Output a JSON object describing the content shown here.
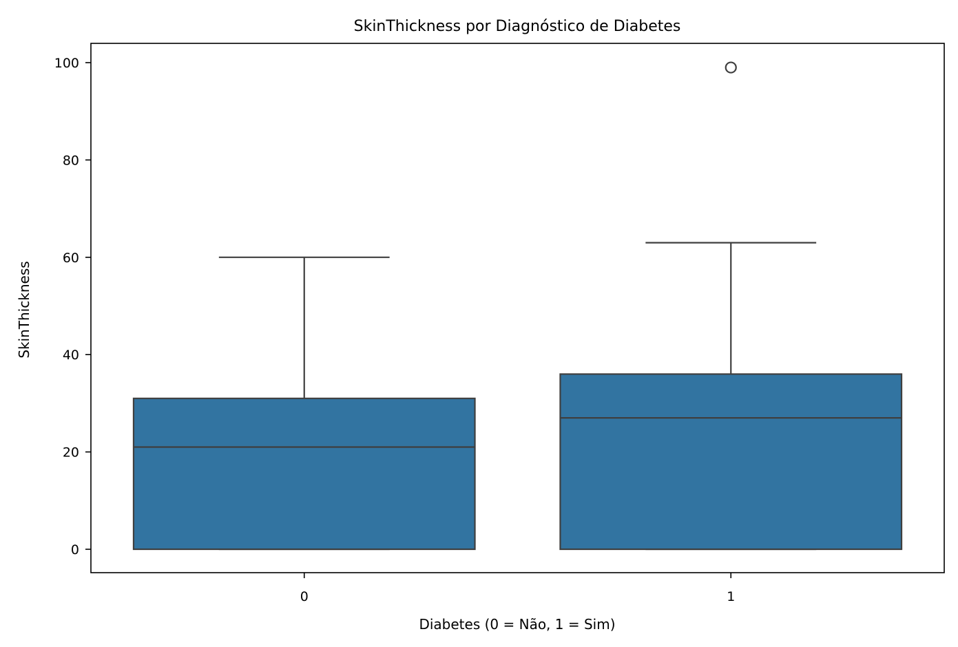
{
  "chart_data": {
    "type": "box",
    "title": "SkinThickness por Diagnóstico de Diabetes",
    "xlabel": "Diabetes (0 = Não, 1 = Sim)",
    "ylabel": "SkinThickness",
    "categories": [
      "0",
      "1"
    ],
    "ylim": [
      -5,
      104
    ],
    "yticks": [
      0,
      20,
      40,
      60,
      80,
      100
    ],
    "ytick_labels": [
      "0",
      "20",
      "40",
      "60",
      "80",
      "100"
    ],
    "grid": false,
    "boxes": [
      {
        "category": "0",
        "whisker_low": 0,
        "q1": 0,
        "median": 21,
        "q3": 31,
        "whisker_high": 60,
        "outliers": []
      },
      {
        "category": "1",
        "whisker_low": 0,
        "q1": 0,
        "median": 27,
        "q3": 36,
        "whisker_high": 63,
        "outliers": [
          99
        ]
      }
    ],
    "colors": {
      "box_fill": "#3274a1",
      "line": "#3f3f3f",
      "axes": "#000000"
    }
  }
}
